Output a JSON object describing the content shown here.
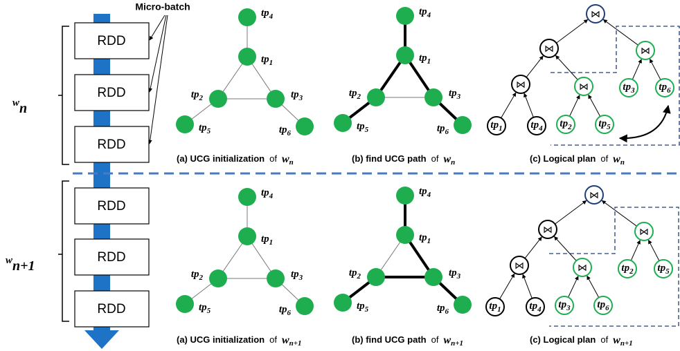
{
  "micro_batch": "Micro-batch",
  "rdd_blocks": [
    "RDD",
    "RDD",
    "RDD",
    "RDD",
    "RDD",
    "RDD"
  ],
  "windows": [
    {
      "var": "w",
      "sub": "n"
    },
    {
      "var": "w",
      "sub": "n+1"
    }
  ],
  "join_symbol": "⋈",
  "node_label": "tp",
  "rows": [
    {
      "graph_nodes": [
        "1",
        "2",
        "3",
        "4",
        "5",
        "6"
      ],
      "plan_leaves": [
        "1",
        "4",
        "2",
        "5",
        "3",
        "6"
      ],
      "captions": [
        {
          "prefix": "(a)  UCG initialization",
          "of": "of",
          "var": "w",
          "sub": "n"
        },
        {
          "prefix": "(b)  find UCG path",
          "of": "of",
          "var": "w",
          "sub": "n"
        },
        {
          "prefix": "(c)  Logical plan",
          "of": "of",
          "var": "w",
          "sub": "n"
        }
      ]
    },
    {
      "graph_nodes": [
        "1",
        "2",
        "3",
        "4",
        "5",
        "6"
      ],
      "plan_leaves": [
        "1",
        "4",
        "3",
        "6",
        "2",
        "5"
      ],
      "captions": [
        {
          "prefix": "(a)  UCG initialization",
          "of": "of",
          "var": "w",
          "sub": "n+1"
        },
        {
          "prefix": "(b)  find UCG path",
          "of": "of",
          "var": "w",
          "sub": "n+1"
        },
        {
          "prefix": "(c)  Logical plan",
          "of": "of",
          "var": "w",
          "sub": "n+1"
        }
      ]
    }
  ]
}
